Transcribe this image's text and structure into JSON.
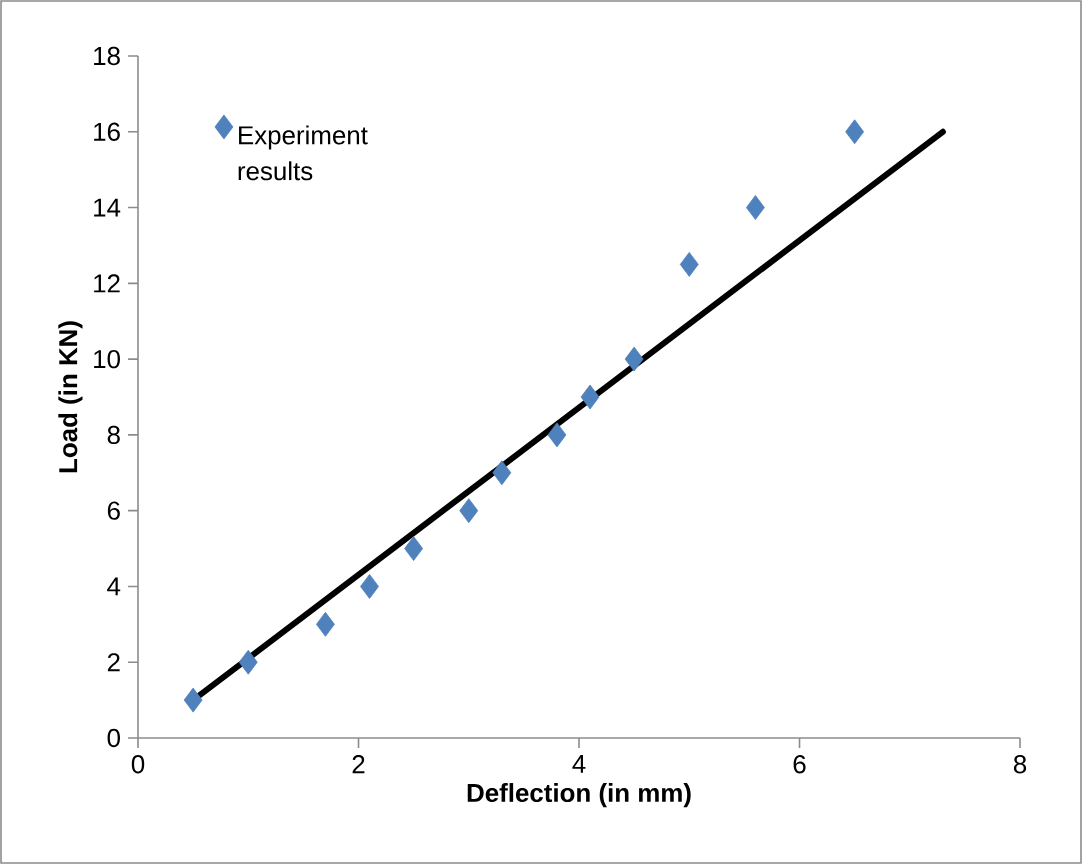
{
  "chart_data": {
    "type": "scatter",
    "xlabel": "Deflection (in mm)",
    "ylabel": "Load (in KN)",
    "xlim": [
      0,
      8
    ],
    "ylim": [
      0,
      18
    ],
    "xticks": [
      0,
      2,
      4,
      6,
      8
    ],
    "yticks": [
      0,
      2,
      4,
      6,
      8,
      10,
      12,
      14,
      16,
      18
    ],
    "grid": false,
    "legend": "top left",
    "series": [
      {
        "name": "Experiment results",
        "marker": "diamond",
        "color": "#4f81bd",
        "x": [
          0.5,
          1.0,
          1.7,
          2.1,
          2.5,
          3.0,
          3.3,
          3.8,
          4.1,
          4.5,
          5.0,
          5.6,
          6.5
        ],
        "values": [
          1,
          2,
          3,
          4,
          5,
          6,
          7,
          8,
          9,
          10,
          12.5,
          14,
          16
        ]
      },
      {
        "type": "line",
        "color": "#000000",
        "x": [
          0.5,
          7.3
        ],
        "values": [
          1,
          16
        ]
      }
    ]
  }
}
